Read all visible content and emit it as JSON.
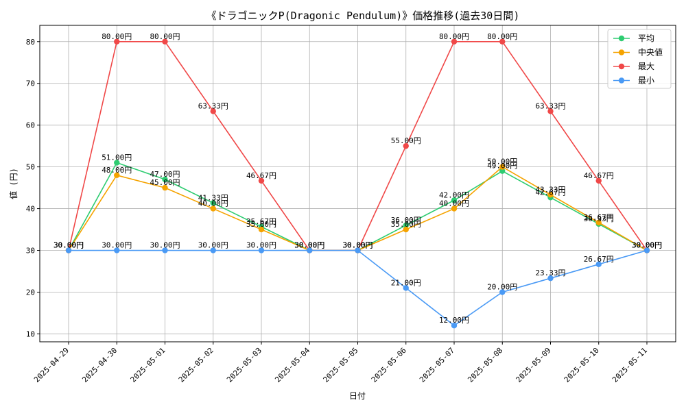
{
  "chart_data": {
    "type": "line",
    "title": "《ドラゴニックP(Dragonic Pendulum)》価格推移(過去30日間)",
    "xlabel": "日付",
    "ylabel": "値 (円)",
    "ylim": [
      8.1,
      83.9
    ],
    "yticks": [
      10,
      20,
      30,
      40,
      50,
      60,
      70,
      80
    ],
    "grid": true,
    "legend_position": "top-right",
    "value_suffix": "円",
    "categories": [
      "2025-04-29",
      "2025-04-30",
      "2025-05-01",
      "2025-05-02",
      "2025-05-03",
      "2025-05-04",
      "2025-05-05",
      "2025-05-06",
      "2025-05-07",
      "2025-05-08",
      "2025-05-09",
      "2025-05-10",
      "2025-05-11"
    ],
    "series": [
      {
        "name": "平均",
        "color": "#2ecc71",
        "values": [
          30.0,
          51.0,
          47.0,
          41.33,
          35.67,
          30.0,
          30.0,
          36.0,
          42.0,
          49.0,
          42.67,
          36.33,
          30.0
        ]
      },
      {
        "name": "中央値",
        "color": "#f5a300",
        "values": [
          30.0,
          48.0,
          45.0,
          40.0,
          35.0,
          30.0,
          30.0,
          35.0,
          40.0,
          50.0,
          43.33,
          36.67,
          30.0
        ]
      },
      {
        "name": "最大",
        "color": "#f04848",
        "values": [
          30.0,
          80.0,
          80.0,
          63.33,
          46.67,
          30.0,
          30.0,
          55.0,
          80.0,
          80.0,
          63.33,
          46.67,
          30.0
        ]
      },
      {
        "name": "最小",
        "color": "#4a9af5",
        "values": [
          30.0,
          30.0,
          30.0,
          30.0,
          30.0,
          30.0,
          30.0,
          21.0,
          12.0,
          20.0,
          23.33,
          26.67,
          30.0
        ]
      }
    ]
  }
}
